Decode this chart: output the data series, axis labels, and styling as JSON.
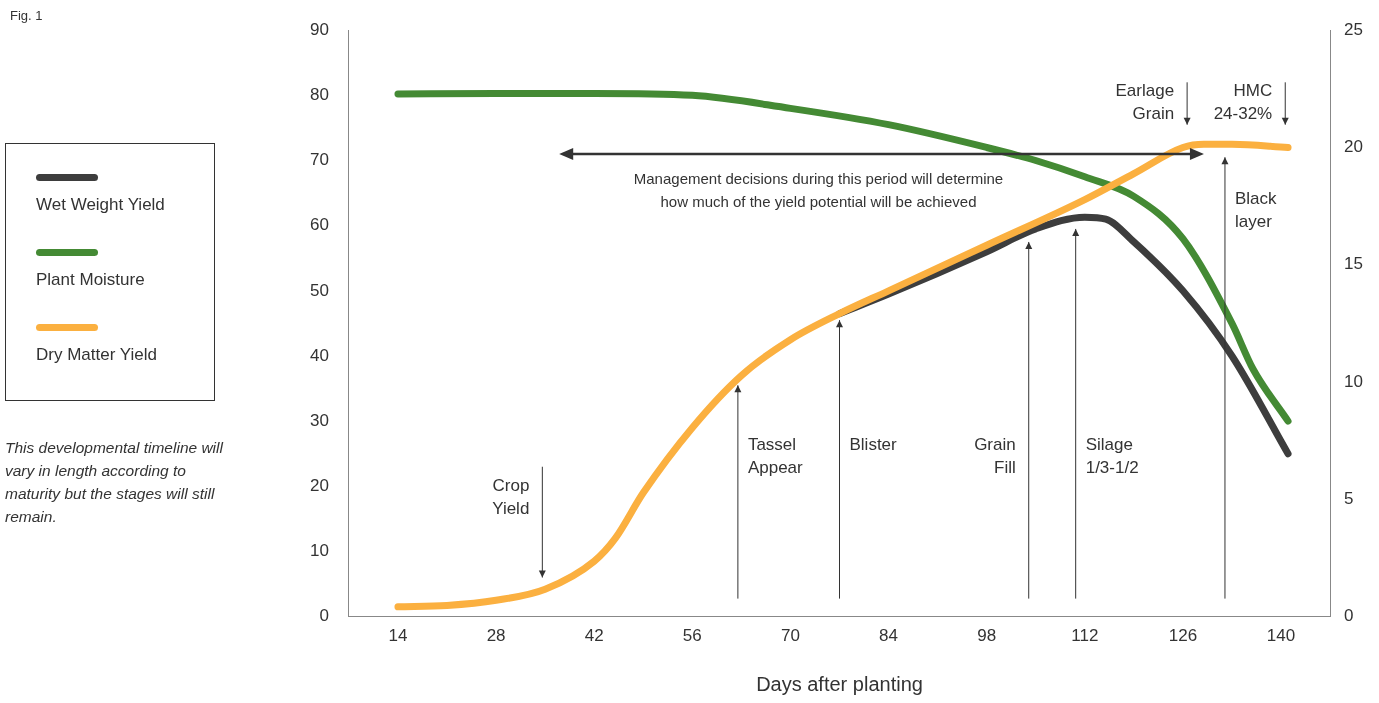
{
  "chart_data": {
    "type": "line",
    "title": "Fig. 1",
    "xlabel": "Days after planting",
    "xlim": [
      7,
      147
    ],
    "xticks": [
      14,
      28,
      42,
      56,
      70,
      84,
      98,
      112,
      126,
      140
    ],
    "ylim": [
      0,
      90
    ],
    "yticks": [
      0,
      10,
      20,
      30,
      40,
      50,
      60,
      70,
      80,
      90
    ],
    "y2lim": [
      0,
      25
    ],
    "y2ticks": [
      0,
      5,
      10,
      15,
      20,
      25
    ],
    "grid": false,
    "legend": "left",
    "marker": "none",
    "line_style": "solid",
    "series": [
      {
        "name": "Wet Weight Yield",
        "color": "#3d3d3d",
        "x": [
          77,
          84,
          98,
          105,
          112,
          115,
          119,
          126,
          133,
          141
        ],
        "values": [
          46.5,
          49.5,
          56,
          59.5,
          61.3,
          61,
          57.5,
          50,
          40,
          25
        ]
      },
      {
        "name": "Plant Moisture",
        "color": "#448a34",
        "x": [
          14,
          28,
          42,
          56,
          70,
          84,
          98,
          105,
          112,
          119,
          126,
          133,
          136,
          141
        ],
        "values": [
          80.2,
          80.3,
          80.3,
          80,
          78,
          75.5,
          72,
          70,
          67.5,
          64.5,
          58,
          45,
          38,
          30
        ]
      },
      {
        "name": "Dry Matter Yield",
        "color": "#fbb040",
        "x": [
          14,
          21,
          28,
          35,
          42,
          45,
          49,
          56,
          63,
          70,
          77,
          84,
          98,
          112,
          119,
          126,
          129,
          133,
          141
        ],
        "values": [
          1.5,
          1.7,
          2.5,
          4.2,
          8.5,
          12,
          19,
          29,
          37,
          42.5,
          46.5,
          50,
          57,
          64,
          68,
          72,
          72.5,
          72.5,
          72
        ]
      }
    ],
    "annotations": [
      "Management decisions during this period will determine\nhow much of the yield potential will be achieved",
      "Crop\nYield",
      "Tassel\nAppear",
      "Blister",
      "Grain\nFill",
      "Silage\n1/3-1/2",
      "Black\nlayer",
      "Earlage\nGrain",
      "HMC\n24-32%",
      "This developmental timeline will vary in length according to maturity but the stages will still remain."
    ]
  }
}
